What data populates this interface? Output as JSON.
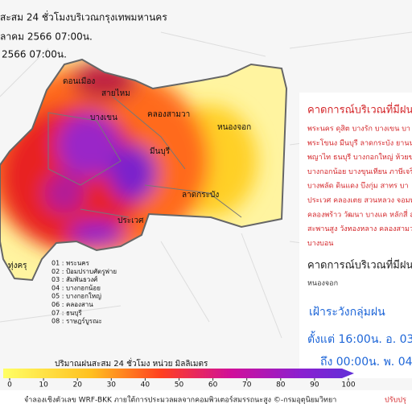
{
  "header": {
    "lines": [
      "สะสม 24 ชั่วโมงบริเวณกรุงเทพมหานคร",
      "ุลาคม 2566 07:00น.",
      "2566 07:00น."
    ]
  },
  "map": {
    "labels": [
      "ดอนเมือง",
      "สายไหม",
      "บางเขน",
      "คลองสามวา",
      "หนองจอก",
      "มีนบุรี",
      "ลาดกระบัง",
      "ประเวศ",
      "ทุ่งครุ"
    ],
    "legend": [
      "01 : พระนคร",
      "02 : ป้อมปราบศัตรูพ่าย",
      "03 : สัมพันธวงศ์",
      "04 : บางกอกน้อย",
      "05 : บางกอกใหญ่",
      "06 : คลองสาน",
      "07 : ธนบุรี",
      "08 : ราษฎร์บูรณะ"
    ]
  },
  "colorbar": {
    "title": "ปริมาณฝนสะสม 24 ชั่วโมง หน่วย มิลลิเมตร",
    "lim": [
      0,
      100
    ],
    "ticks": [
      0,
      10,
      20,
      30,
      40,
      50,
      60,
      70,
      80,
      90,
      100
    ]
  },
  "panel": {
    "rain_title": "คาดการณ์บริเวณที่มีฝน",
    "rain_districts": [
      "พระนคร ดุสิต บางรัก บางเขน บา",
      "พระโขนง มีนบุรี ลาดกระบัง ยานน",
      "พญาไท ธนบุรี บางกอกใหญ่ ห้วยข",
      "บางกอกน้อย บางขุนเทียน ภาษีเจริ",
      "บางพลัด ดินแดง บึงกุ่ม สาทร บา",
      "ประเวศ คลองเตย สวนหลวง จอมท",
      "คลองพร้าว วัฒนา บางแค หลักสี่ ส",
      "สะพานสูง วังทองหลาง คลองสามว",
      "บางบอน"
    ],
    "light_title": "คาดการณ์บริเวณที่มีฝน",
    "light_districts": "หนองจอก",
    "watch_title": "เฝ้าระวังกลุ่มฝน",
    "watch_from": "ตั้งแต่ 16:00น. อ. 03",
    "watch_to": "ถึง 00:00น. พ. 04"
  },
  "footer": {
    "credit": "จำลองเชิงตัวเลข WRF-BKK ภายใต้การประมวลผลจากคอมพิวเตอร์สมรรถนะสูง ©-กรมอุตุนิยมวิทยา",
    "update": "ปรับปรุ"
  }
}
